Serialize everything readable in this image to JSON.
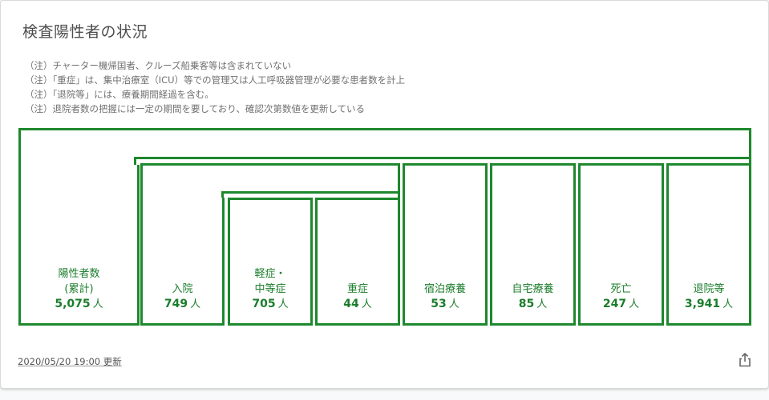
{
  "card": {
    "title": "検査陽性者の状況",
    "notes": [
      "（注）チャーター機帰国者、クルーズ船乗客等は含まれていない",
      "（注）「重症」は、集中治療室（ICU）等での管理又は人工呼吸器管理が必要な患者数を計上",
      "（注）「退院等」には、療養期間経過を含む。",
      "（注）退院者数の把握には一定の期間を要しており、確認次第数値を更新している"
    ],
    "updated": "2020/05/20 19:00 更新",
    "share_icon": "share-icon"
  },
  "diagram": {
    "unit": "人",
    "accent_color": "#1e882d",
    "positive": {
      "label_line1": "陽性者数",
      "label_line2": "(累計)",
      "value": "5,075"
    },
    "hospitalized": {
      "label": "入院",
      "value": "749"
    },
    "mild": {
      "label_line1": "軽症・",
      "label_line2": "中等症",
      "value": "705"
    },
    "severe": {
      "label": "重症",
      "value": "44"
    },
    "hotel": {
      "label": "宿泊療養",
      "value": "53"
    },
    "home": {
      "label": "自宅療養",
      "value": "85"
    },
    "death": {
      "label": "死亡",
      "value": "247"
    },
    "discharged": {
      "label": "退院等",
      "value": "3,941"
    }
  }
}
